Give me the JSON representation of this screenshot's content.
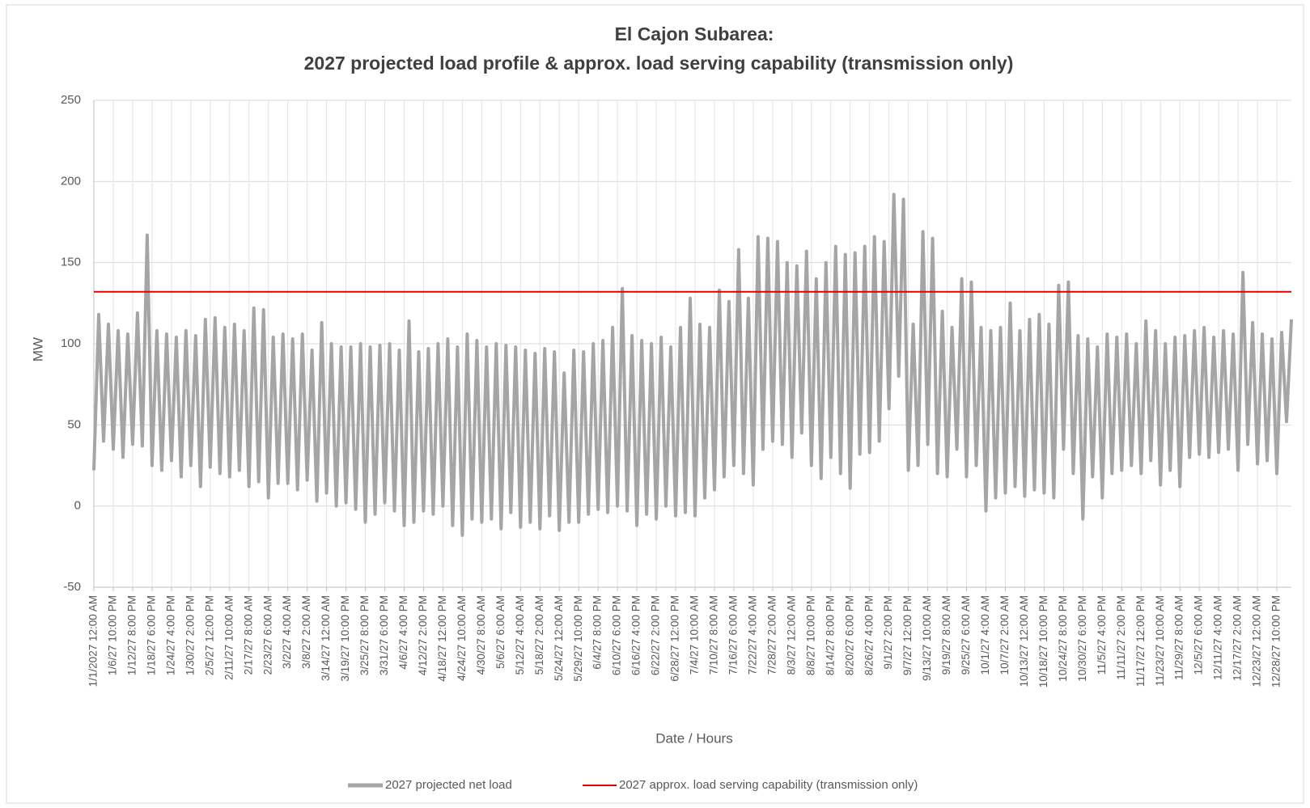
{
  "chart_data": {
    "type": "line",
    "title": [
      "El Cajon Subarea:",
      "2027 projected load profile & approx. load serving capability (transmission only)"
    ],
    "xlabel": "Date / Hours",
    "ylabel": "MW",
    "ylim": [
      -50,
      250
    ],
    "yticks": [
      -50,
      0,
      50,
      100,
      150,
      200,
      250
    ],
    "grid": true,
    "legend": "bottom",
    "categories": [
      "1/1/2027 12:00 AM",
      null,
      null,
      null,
      "1/6/27 10:00 PM",
      null,
      null,
      null,
      "1/12/27 8:00 PM",
      null,
      null,
      null,
      "1/18/27 6:00 PM",
      null,
      null,
      null,
      "1/24/27 4:00 PM",
      null,
      null,
      null,
      "1/30/27 2:00 PM",
      null,
      null,
      null,
      "2/5/27 12:00 PM",
      null,
      null,
      null,
      "2/11/27 10:00 AM",
      null,
      null,
      null,
      "2/17/27 8:00 AM",
      null,
      null,
      null,
      "2/23/27 6:00 AM",
      null,
      null,
      null,
      "3/2/27 4:00 AM",
      null,
      null,
      null,
      "3/8/27 2:00 AM",
      null,
      null,
      null,
      "3/14/27 12:00 AM",
      null,
      null,
      null,
      "3/19/27 10:00 PM",
      null,
      null,
      null,
      "3/25/27 8:00 PM",
      null,
      null,
      null,
      "3/31/27 6:00 PM",
      null,
      null,
      null,
      "4/6/27 4:00 PM",
      null,
      null,
      null,
      "4/12/27 2:00 PM",
      null,
      null,
      null,
      "4/18/27 12:00 PM",
      null,
      null,
      null,
      "4/24/27 10:00 AM",
      null,
      null,
      null,
      "4/30/27 8:00 AM",
      null,
      null,
      null,
      "5/6/27 6:00 AM",
      null,
      null,
      null,
      "5/12/27 4:00 AM",
      null,
      null,
      null,
      "5/18/27 2:00 AM",
      null,
      null,
      null,
      "5/24/27 12:00 AM",
      null,
      null,
      null,
      "5/29/27 10:00 PM",
      null,
      null,
      null,
      "6/4/27 8:00 PM",
      null,
      null,
      null,
      "6/10/27 6:00 PM",
      null,
      null,
      null,
      "6/16/27 4:00 PM",
      null,
      null,
      null,
      "6/22/27 2:00 PM",
      null,
      null,
      null,
      "6/28/27 12:00 PM",
      null,
      null,
      null,
      "7/4/27 10:00 AM",
      null,
      null,
      null,
      "7/10/27 8:00 AM",
      null,
      null,
      null,
      "7/16/27 6:00 AM",
      null,
      null,
      null,
      "7/22/27 4:00 AM",
      null,
      null,
      null,
      "7/28/27 2:00 AM",
      null,
      null,
      null,
      "8/3/27 12:00 AM",
      null,
      null,
      null,
      "8/8/27 10:00 PM",
      null,
      null,
      null,
      "8/14/27 8:00 PM",
      null,
      null,
      null,
      "8/20/27 6:00 PM",
      null,
      null,
      null,
      "8/26/27 4:00 PM",
      null,
      null,
      null,
      "9/1/27 2:00 PM",
      null,
      null,
      null,
      "9/7/27 12:00 PM",
      null,
      null,
      null,
      "9/13/27 10:00 AM",
      null,
      null,
      null,
      "9/19/27 8:00 AM",
      null,
      null,
      null,
      "9/25/27 6:00 AM",
      null,
      null,
      null,
      "10/1/27 4:00 AM",
      null,
      null,
      null,
      "10/7/27 2:00 AM",
      null,
      null,
      null,
      "10/13/27 12:00 AM",
      null,
      null,
      null,
      "10/18/27 10:00 PM",
      null,
      null,
      null,
      "10/24/27 8:00 PM",
      null,
      null,
      null,
      "10/30/27 6:00 PM",
      null,
      null,
      null,
      "11/5/27 4:00 PM",
      null,
      null,
      null,
      "11/11/27 2:00 PM",
      null,
      null,
      null,
      "11/17/27 12:00 PM",
      null,
      null,
      null,
      "11/23/27 10:00 AM",
      null,
      null,
      null,
      "11/29/27 8:00 AM",
      null,
      null,
      null,
      "12/5/27 6:00 AM",
      null,
      null,
      null,
      "12/11/27 4:00 AM",
      null,
      null,
      null,
      "12/17/27 2:00 AM",
      null,
      null,
      null,
      "12/23/27 12:00 AM",
      null,
      null,
      null,
      "12/28/27 10:00 PM",
      null,
      null,
      null
    ],
    "series": [
      {
        "name": "2027 projected net load",
        "color": "#a5a5a5",
        "values": [
          22,
          118,
          40,
          112,
          35,
          108,
          30,
          106,
          38,
          119,
          37,
          167,
          25,
          108,
          22,
          106,
          28,
          104,
          18,
          108,
          25,
          105,
          12,
          115,
          24,
          116,
          20,
          110,
          18,
          112,
          22,
          108,
          12,
          122,
          15,
          121,
          5,
          104,
          14,
          106,
          14,
          103,
          10,
          106,
          16,
          96,
          3,
          113,
          8,
          100,
          0,
          98,
          2,
          98,
          -2,
          100,
          -10,
          98,
          -5,
          99,
          2,
          100,
          -3,
          96,
          -12,
          114,
          -10,
          95,
          -3,
          97,
          -5,
          100,
          0,
          103,
          -12,
          98,
          -18,
          106,
          -8,
          102,
          -10,
          98,
          -8,
          100,
          -14,
          99,
          -4,
          98,
          -13,
          96,
          -10,
          94,
          -14,
          97,
          -6,
          95,
          -15,
          82,
          -10,
          96,
          -10,
          95,
          -5,
          100,
          -2,
          102,
          -4,
          110,
          0,
          134,
          -3,
          105,
          -12,
          102,
          -5,
          100,
          -8,
          104,
          0,
          98,
          -6,
          110,
          -4,
          128,
          -6,
          112,
          5,
          110,
          10,
          133,
          18,
          126,
          25,
          158,
          20,
          128,
          13,
          166,
          35,
          165,
          40,
          163,
          38,
          150,
          30,
          148,
          45,
          157,
          25,
          140,
          17,
          150,
          30,
          160,
          20,
          155,
          11,
          156,
          32,
          160,
          33,
          166,
          40,
          163,
          60,
          192,
          80,
          189,
          22,
          112,
          25,
          169,
          38,
          165,
          20,
          120,
          18,
          110,
          35,
          140,
          18,
          138,
          25,
          110,
          -3,
          108,
          5,
          110,
          8,
          125,
          12,
          108,
          6,
          115,
          10,
          118,
          8,
          112,
          5,
          136,
          35,
          138,
          20,
          105,
          -8,
          103,
          18,
          98,
          5,
          106,
          20,
          104,
          22,
          106,
          25,
          100,
          20,
          114,
          28,
          108,
          13,
          100,
          22,
          104,
          12,
          105,
          30,
          108,
          32,
          110,
          30,
          104,
          33,
          108,
          35,
          106,
          22,
          144,
          38,
          113,
          26,
          106,
          28,
          103,
          20,
          107,
          52,
          115
        ]
      }
    ],
    "reference_line": {
      "name": "2027 approx. load serving  capability (transmission only)",
      "color": "#e00000",
      "value": 132
    }
  }
}
